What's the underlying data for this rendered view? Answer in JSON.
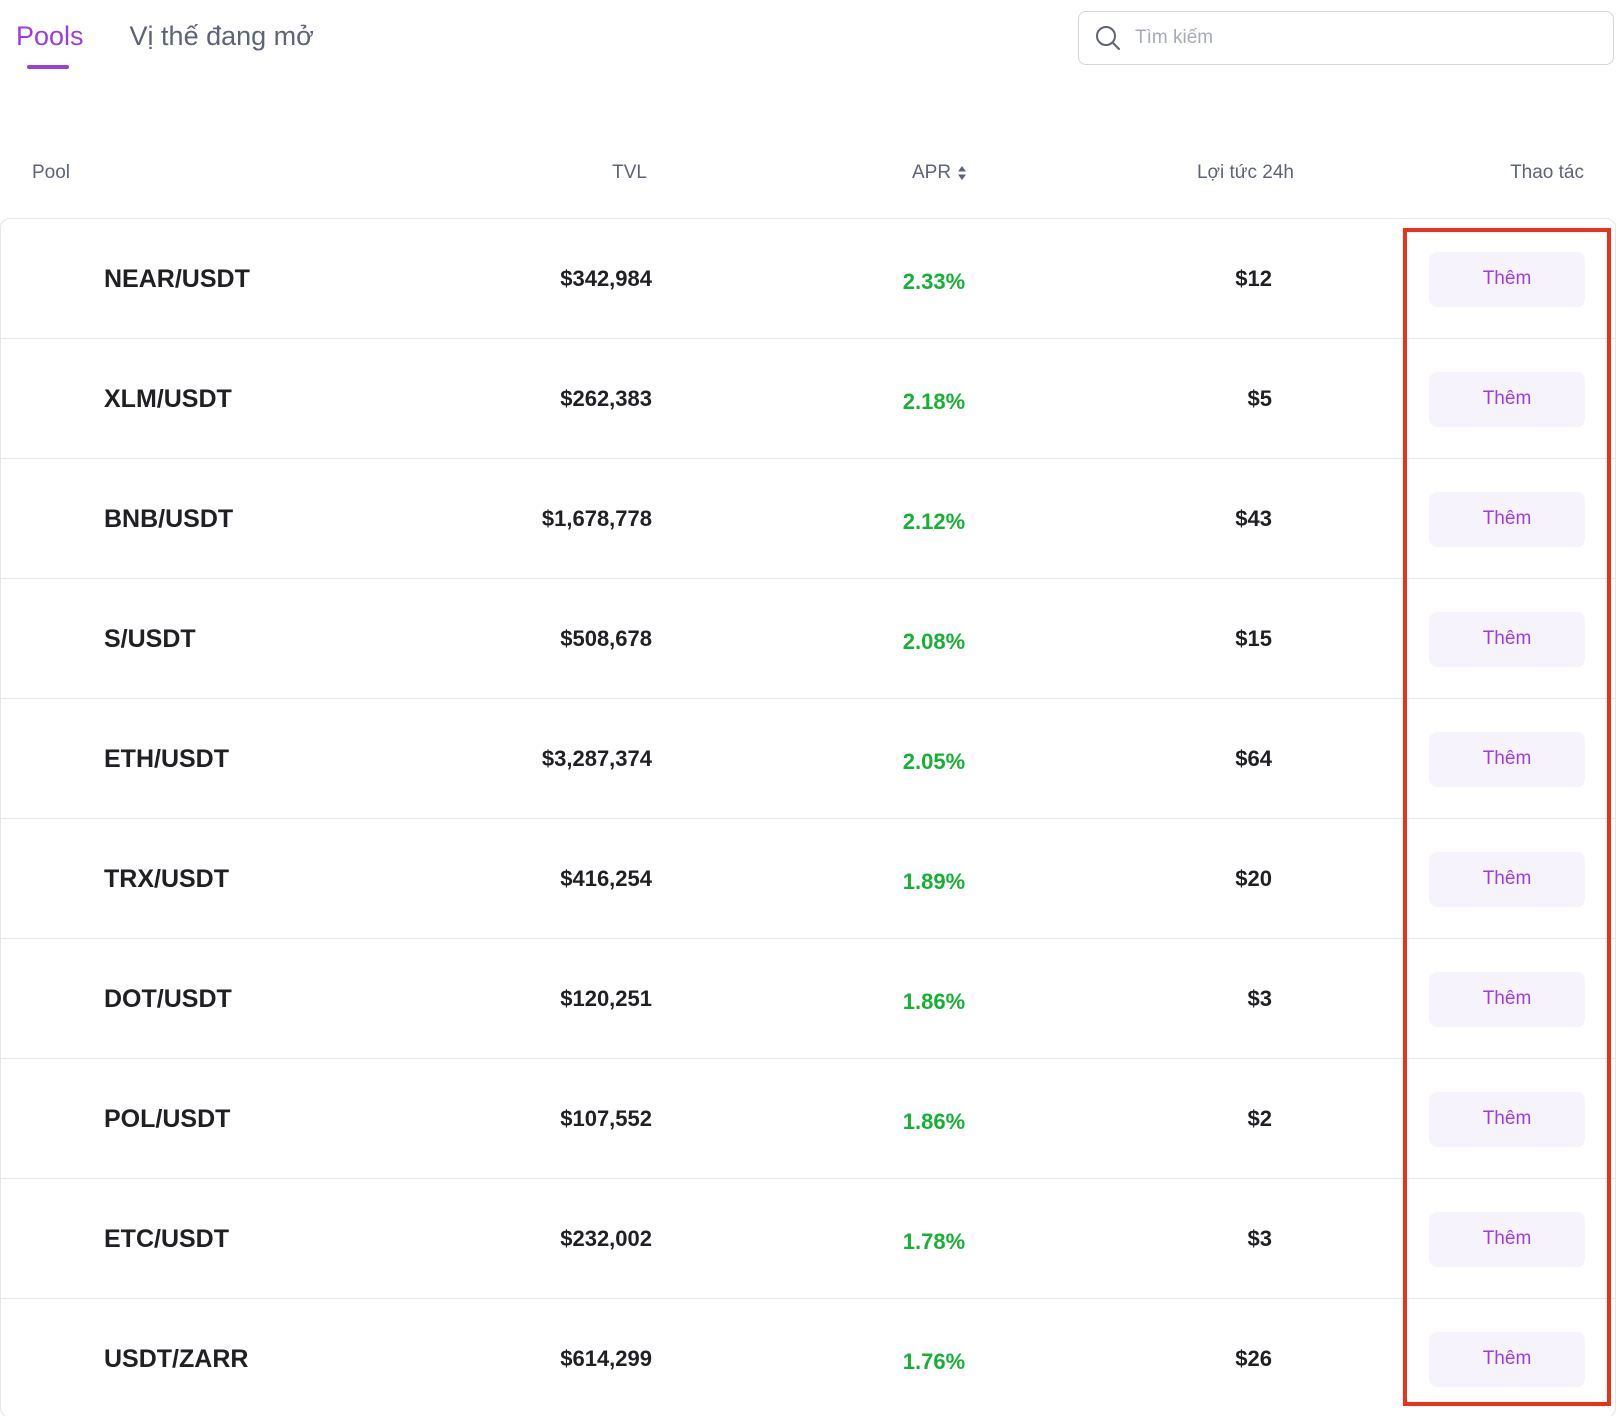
{
  "tabs": [
    {
      "label": "Pools",
      "active": true
    },
    {
      "label": "Vị thế đang mở",
      "active": false
    }
  ],
  "search": {
    "placeholder": "Tìm kiếm",
    "value": ""
  },
  "table": {
    "headers": {
      "pool": "Pool",
      "tvl": "TVL",
      "apr": "APR",
      "yield_24h": "Lợi tức 24h",
      "action": "Thao tác"
    },
    "rows": [
      {
        "pool": "NEAR/USDT",
        "tvl": "$342,984",
        "apr": "2.33%",
        "yield_24h": "$12",
        "action": "Thêm"
      },
      {
        "pool": "XLM/USDT",
        "tvl": "$262,383",
        "apr": "2.18%",
        "yield_24h": "$5",
        "action": "Thêm"
      },
      {
        "pool": "BNB/USDT",
        "tvl": "$1,678,778",
        "apr": "2.12%",
        "yield_24h": "$43",
        "action": "Thêm"
      },
      {
        "pool": "S/USDT",
        "tvl": "$508,678",
        "apr": "2.08%",
        "yield_24h": "$15",
        "action": "Thêm"
      },
      {
        "pool": "ETH/USDT",
        "tvl": "$3,287,374",
        "apr": "2.05%",
        "yield_24h": "$64",
        "action": "Thêm"
      },
      {
        "pool": "TRX/USDT",
        "tvl": "$416,254",
        "apr": "1.89%",
        "yield_24h": "$20",
        "action": "Thêm"
      },
      {
        "pool": "DOT/USDT",
        "tvl": "$120,251",
        "apr": "1.86%",
        "yield_24h": "$3",
        "action": "Thêm"
      },
      {
        "pool": "POL/USDT",
        "tvl": "$107,552",
        "apr": "1.86%",
        "yield_24h": "$2",
        "action": "Thêm"
      },
      {
        "pool": "ETC/USDT",
        "tvl": "$232,002",
        "apr": "1.78%",
        "yield_24h": "$3",
        "action": "Thêm"
      },
      {
        "pool": "USDT/ZARR",
        "tvl": "$614,299",
        "apr": "1.76%",
        "yield_24h": "$26",
        "action": "Thêm"
      }
    ]
  },
  "icons": {
    "search": "search-icon",
    "sort": "sort-icon"
  },
  "colors": {
    "accent": "#9b3ee0",
    "apr_positive": "#16b134",
    "button_bg": "#f7f3fc",
    "highlight": "#e8321c"
  }
}
